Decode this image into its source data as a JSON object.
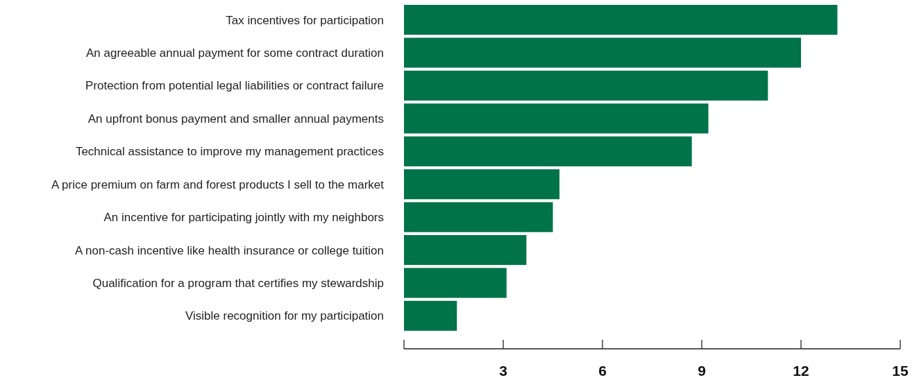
{
  "chart_data": {
    "type": "bar",
    "orientation": "horizontal",
    "categories": [
      "Tax incentives for participation",
      "An agreeable annual payment for some contract duration",
      "Protection from potential legal liabilities or contract failure",
      "An upfront bonus payment and smaller annual payments",
      "Technical assistance to improve my management practices",
      "A price premium on farm and forest products I sell to the market",
      "An incentive for participating jointly with my neighbors",
      "A non-cash incentive like health insurance or college tuition",
      "Qualification for a program that certifies my stewardship",
      "Visible recognition for my participation"
    ],
    "values": [
      13.1,
      12.0,
      11.0,
      9.2,
      8.7,
      4.7,
      4.5,
      3.7,
      3.1,
      1.6
    ],
    "color": "#00734a",
    "xlim": [
      0,
      15
    ],
    "xticks": [
      {
        "value": 0,
        "label": null
      },
      3,
      6,
      9,
      12,
      15
    ],
    "grid": false
  }
}
